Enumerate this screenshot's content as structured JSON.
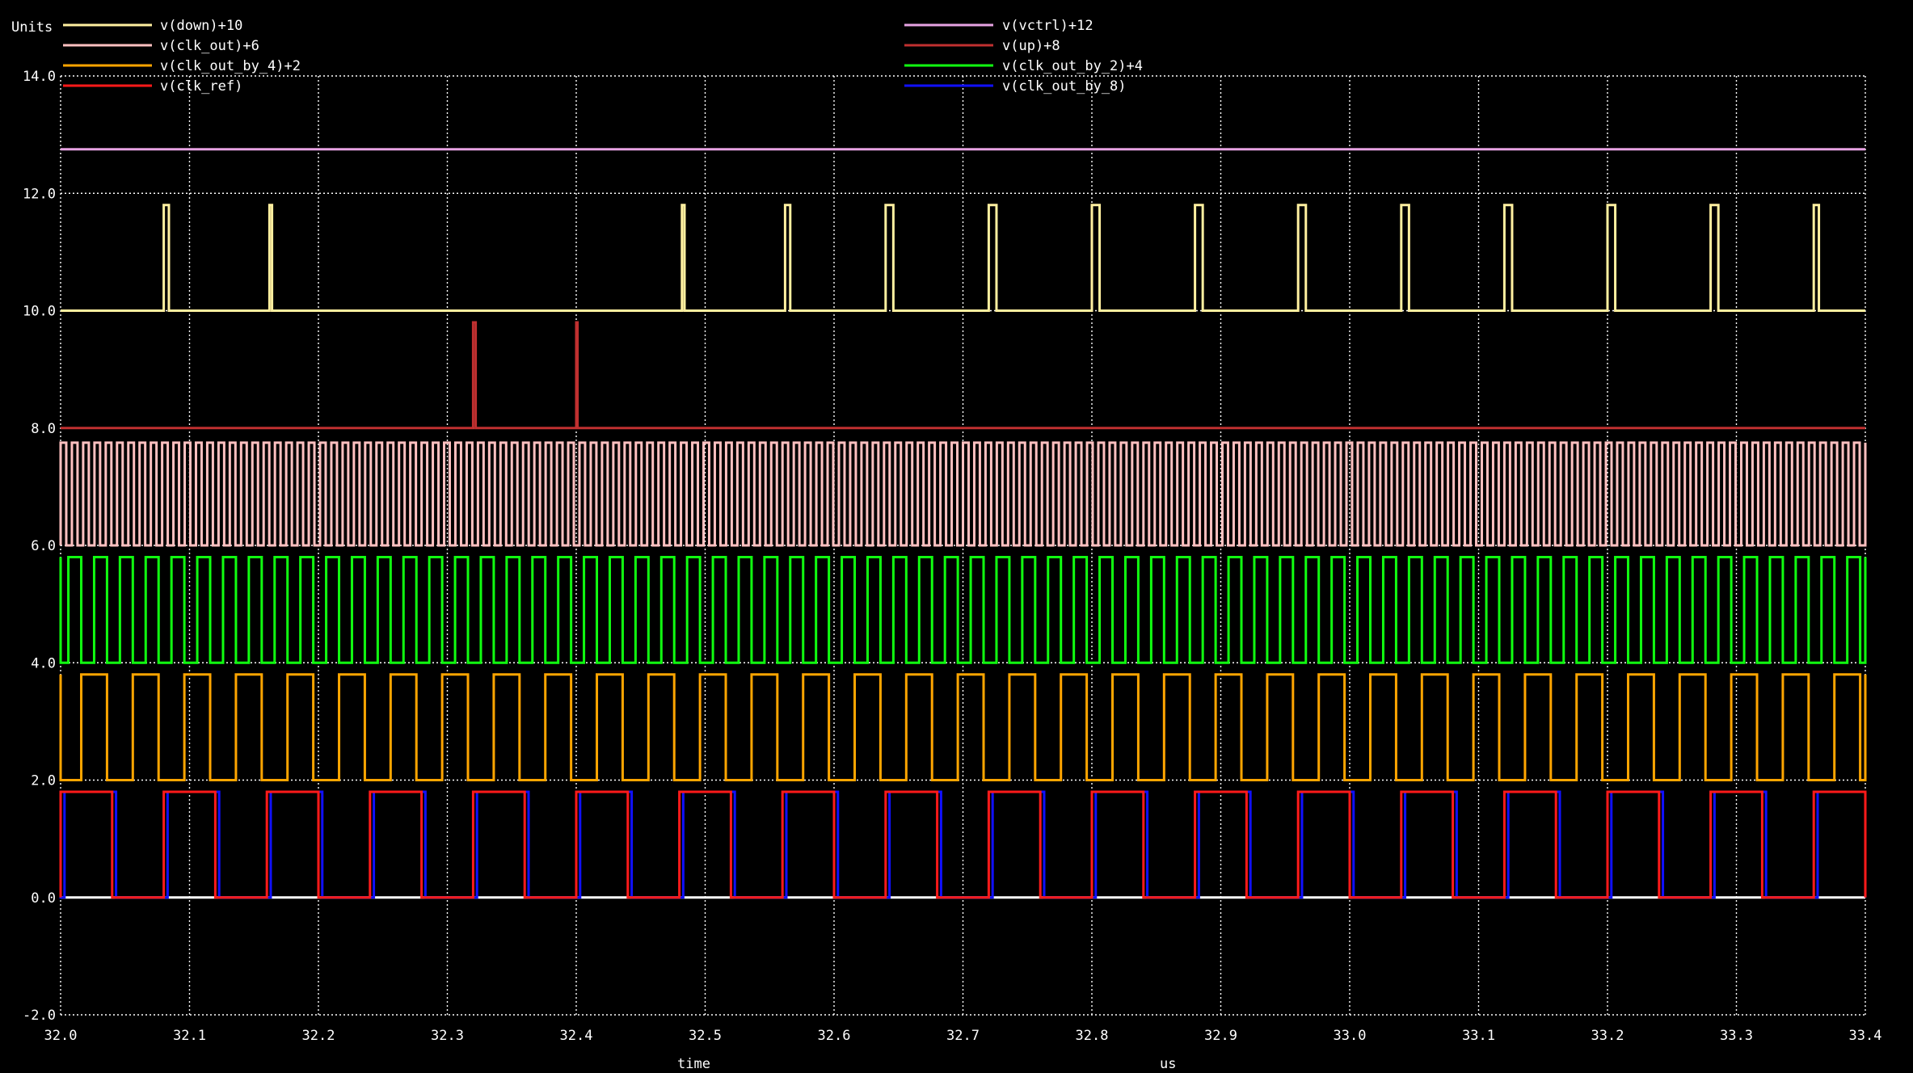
{
  "chart_data": {
    "type": "line",
    "title": "",
    "units_label": "Units",
    "xlabel": "time",
    "xunit": "us",
    "xlim": [
      32.0,
      33.4
    ],
    "ylim": [
      -2.0,
      14.0
    ],
    "x_ticks": [
      32.0,
      32.1,
      32.2,
      32.3,
      32.4,
      32.5,
      32.6,
      32.7,
      32.8,
      32.9,
      33.0,
      33.1,
      33.2,
      33.3,
      33.4
    ],
    "x_tick_labels": [
      "32.0",
      "32.1",
      "32.2",
      "32.3",
      "32.4",
      "32.5",
      "32.6",
      "32.7",
      "32.8",
      "32.9",
      "33.0",
      "33.1",
      "33.2",
      "33.3",
      "33.4"
    ],
    "y_ticks": [
      -2,
      0,
      2,
      4,
      6,
      8,
      10,
      12,
      14
    ],
    "y_tick_labels": [
      "-2.0",
      "0.0",
      "2.0",
      "4.0",
      "6.0",
      "8.0",
      "10.0",
      "12.0",
      "14.0"
    ],
    "grid": true,
    "legend_position": "top",
    "zero_line_color": "#ffffff",
    "series": [
      {
        "name": "v(down)+10",
        "color": "#fff0a0",
        "kind": "pulses",
        "low": 10.0,
        "high": 11.8,
        "starts": [
          32.08,
          32.162,
          32.482,
          32.562,
          32.64,
          32.72,
          32.8,
          32.88,
          32.96,
          33.04,
          33.12,
          33.2,
          33.28,
          33.36
        ],
        "widths": [
          0.004,
          0.002,
          0.002,
          0.004,
          0.006,
          0.006,
          0.006,
          0.006,
          0.006,
          0.006,
          0.006,
          0.006,
          0.006,
          0.004
        ]
      },
      {
        "name": "v(clk_out)+6",
        "color": "#ffc0c0",
        "kind": "clock",
        "low": 6.0,
        "high": 7.75,
        "start": 32.0,
        "period": 0.00875,
        "duty": 0.5,
        "phase": 0.0
      },
      {
        "name": "v(clk_out_by_4)+2",
        "color": "#ffa500",
        "kind": "clock",
        "low": 2.0,
        "high": 3.8,
        "start": 32.0,
        "period": 0.04,
        "duty": 0.5,
        "phase": 0.016
      },
      {
        "name": "v(clk_ref)",
        "color": "#ff1a1a",
        "kind": "clock",
        "low": 0.0,
        "high": 1.8,
        "start": 32.0,
        "period": 0.08,
        "duty": 0.5,
        "phase": 0.0
      },
      {
        "name": "v(vctrl)+12",
        "color": "#e7a3e3",
        "kind": "constant",
        "value": 12.75
      },
      {
        "name": "v(up)+8",
        "color": "#c03030",
        "kind": "pulses",
        "low": 8.0,
        "high": 9.8,
        "starts": [
          32.32,
          32.4
        ],
        "widths": [
          0.002,
          0.001
        ]
      },
      {
        "name": "v(clk_out_by_2)+4",
        "color": "#10ff10",
        "kind": "clock",
        "low": 4.0,
        "high": 5.8,
        "start": 32.0,
        "period": 0.02,
        "duty": 0.5,
        "phase": 0.006
      },
      {
        "name": "v(clk_out_by_8)",
        "color": "#1010ff",
        "kind": "clock",
        "low": 0.0,
        "high": 1.8,
        "start": 32.0,
        "period": 0.08,
        "duty": 0.5,
        "phase": 0.003
      }
    ]
  }
}
